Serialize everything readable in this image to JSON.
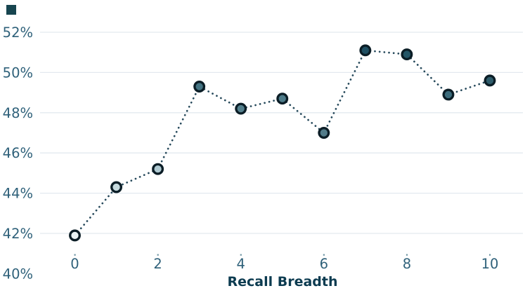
{
  "page": {
    "background": "#ffffff"
  },
  "corner_square": {
    "color": "#17454f"
  },
  "chart_data": {
    "type": "line",
    "subtype": "dotted-line-with-markers",
    "title": "",
    "xlabel": "Recall Breadth",
    "ylabel": "",
    "x": [
      0,
      1,
      2,
      3,
      4,
      5,
      6,
      7,
      8,
      9,
      10
    ],
    "y_percent": [
      41.9,
      44.3,
      45.2,
      49.3,
      48.2,
      48.7,
      47.0,
      51.1,
      50.9,
      48.9,
      49.6
    ],
    "x_tick_values": [
      0,
      2,
      4,
      6,
      8,
      10
    ],
    "x_tick_labels": [
      "0",
      "2",
      "4",
      "6",
      "8",
      "10"
    ],
    "y_tick_values": [
      52,
      50,
      48,
      46,
      44,
      42,
      40
    ],
    "y_tick_labels": [
      "52%",
      "50%",
      "48%",
      "46%",
      "44%",
      "42%",
      "40%"
    ],
    "gridline_values": [
      52,
      50,
      48,
      46,
      44,
      42
    ],
    "xlim": [
      -0.5,
      10.5
    ],
    "ylim": [
      40,
      52.4
    ],
    "grid": "horizontal-only",
    "legend_position": "none",
    "line_color": "#26495b",
    "line_style": "dotted",
    "marker_stroke_color": "#0b1d26",
    "marker_fills": [
      "#e9f2f4",
      "#c6dade",
      "#b0cad2",
      "#447483",
      "#54808d",
      "#4d7b89",
      "#527c8a",
      "#1f4f62",
      "#235566",
      "#3c6c7c",
      "#2e5c6b"
    ],
    "grid_color": "#e3e9ef",
    "tick_label_color": "#2f617a",
    "tick_mark_color": "#6f95a3",
    "axis_title_color": "#0c3b50"
  }
}
